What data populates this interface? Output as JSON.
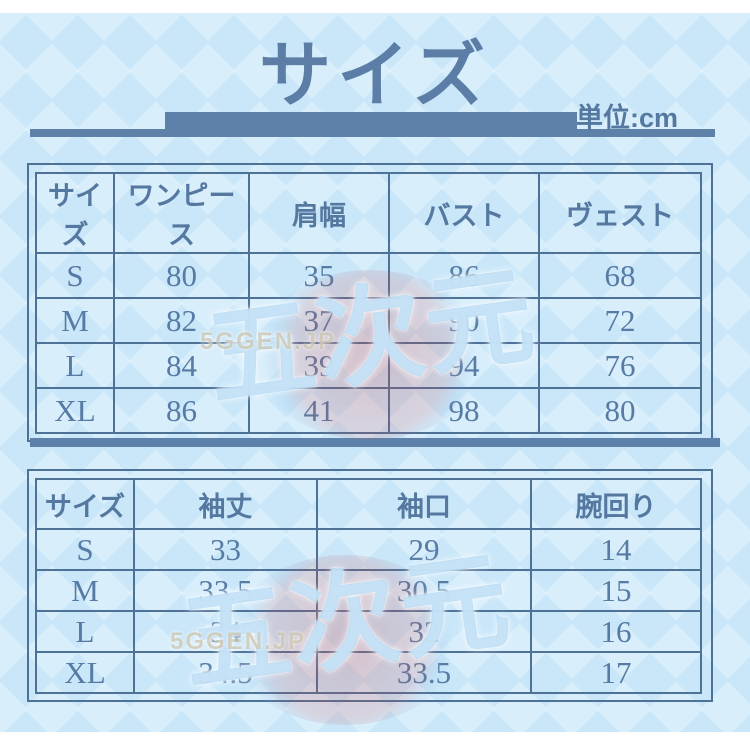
{
  "title": "サイズ",
  "unit_label": "単位:cm",
  "watermark": {
    "logo": "五次元",
    "site": "5GGEN.JP"
  },
  "colors": {
    "accent_bar": "#5d81a8",
    "table_border": "#4e7196",
    "text": "#567ba4",
    "background": "#c9e7f9"
  },
  "chart_data": [
    {
      "type": "table",
      "title": "サイズ",
      "unit": "cm",
      "columns": [
        "サイズ",
        "ワンピース",
        "肩幅",
        "バスト",
        "ヴェスト"
      ],
      "rows": [
        [
          "S",
          80,
          35,
          86,
          68
        ],
        [
          "M",
          82,
          37,
          90,
          72
        ],
        [
          "L",
          84,
          39,
          94,
          76
        ],
        [
          "XL",
          86,
          41,
          98,
          80
        ]
      ]
    },
    {
      "type": "table",
      "title": "",
      "unit": "cm",
      "columns": [
        "サイズ",
        "袖丈",
        "袖口",
        "腕回り"
      ],
      "rows": [
        [
          "S",
          33,
          29,
          14
        ],
        [
          "M",
          33.5,
          30.5,
          15
        ],
        [
          "L",
          34,
          32,
          16
        ],
        [
          "XL",
          34.5,
          33.5,
          17
        ]
      ]
    }
  ]
}
